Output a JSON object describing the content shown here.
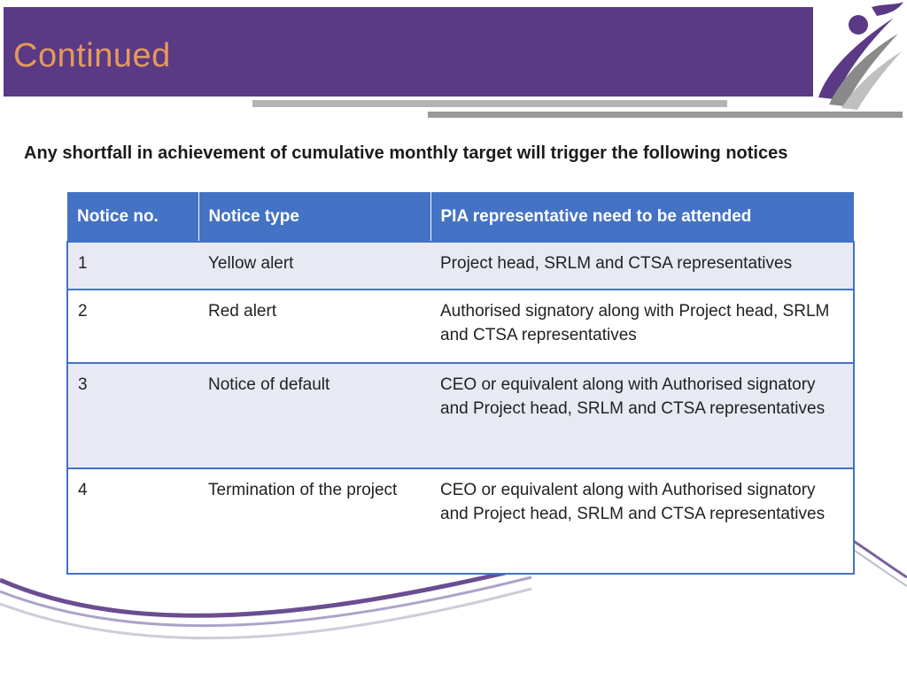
{
  "header": {
    "title": "Continued"
  },
  "subtitle": "Any shortfall in achievement of cumulative monthly target will trigger the following notices",
  "table": {
    "headers": [
      "Notice no.",
      "Notice type",
      "PIA representative need to be attended"
    ],
    "rows": [
      [
        "1",
        "Yellow alert",
        "Project head, SRLM and CTSA representatives"
      ],
      [
        "2",
        "Red alert",
        "Authorised signatory along with Project head, SRLM and CTSA representatives"
      ],
      [
        "3",
        "Notice of default",
        "CEO or equivalent along with Authorised signatory and Project head, SRLM and CTSA representatives"
      ],
      [
        "4",
        "Termination of the project",
        "CEO or equivalent along with Authorised signatory and Project head, SRLM and CTSA representatives"
      ]
    ]
  },
  "colors": {
    "title_bar": "#5a3a85",
    "title_text": "#e59a5a",
    "table_header": "#4472c4",
    "row_shade": "#e8eaf3"
  },
  "icons": [
    "person-logo-icon",
    "decorative-swoosh"
  ]
}
